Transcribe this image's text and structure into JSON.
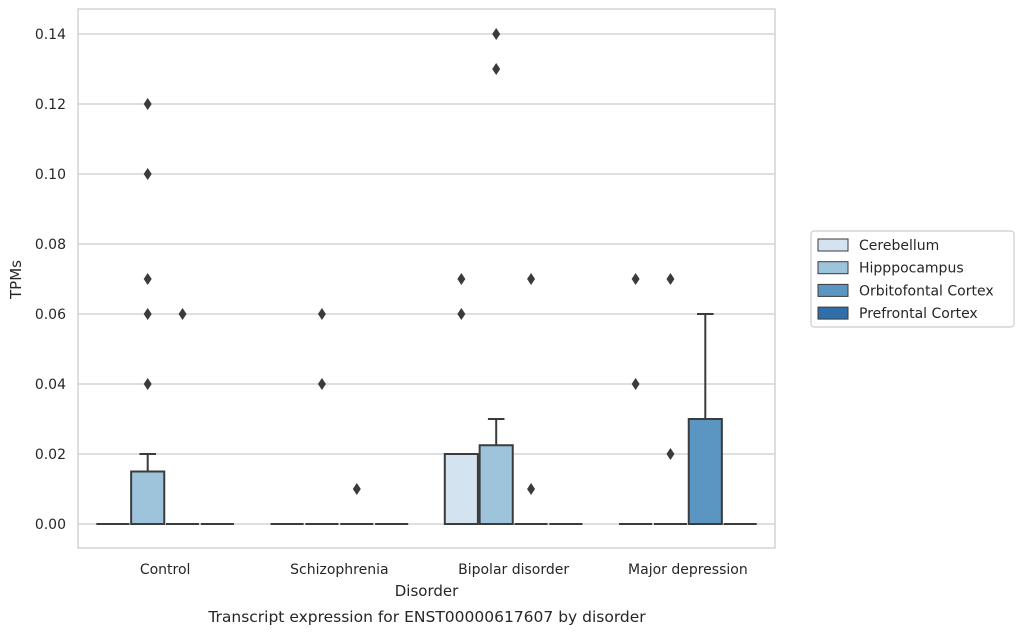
{
  "chart_data": {
    "type": "box",
    "title": "",
    "caption": "Transcript expression for ENST00000617607 by disorder",
    "xlabel": "Disorder",
    "ylabel": "TPMs",
    "ylim": [
      -0.007,
      0.147
    ],
    "yticks": [
      "0.00",
      "0.02",
      "0.04",
      "0.06",
      "0.08",
      "0.10",
      "0.12",
      "0.14"
    ],
    "categories": [
      "Control",
      "Schizophrenia",
      "Bipolar disorder",
      "Major depression"
    ],
    "grid": "horizontal",
    "legend_position": "right",
    "series": [
      {
        "name": "Cerebellum",
        "color": "#d4e3f0",
        "boxes": [
          {
            "q1": 0,
            "median": 0,
            "q3": 0,
            "whisker_low": 0,
            "whisker_high": 0,
            "outliers": []
          },
          {
            "q1": 0,
            "median": 0,
            "q3": 0,
            "whisker_low": 0,
            "whisker_high": 0,
            "outliers": []
          },
          {
            "q1": 0,
            "median": 0,
            "q3": 0.02,
            "whisker_low": 0,
            "whisker_high": 0.02,
            "outliers": [
              0.06,
              0.07
            ]
          },
          {
            "q1": 0,
            "median": 0,
            "q3": 0,
            "whisker_low": 0,
            "whisker_high": 0,
            "outliers": [
              0.04,
              0.07
            ]
          }
        ]
      },
      {
        "name": "Hipppocampus",
        "color": "#9ec4db",
        "boxes": [
          {
            "q1": 0,
            "median": 0,
            "q3": 0.015,
            "whisker_low": 0,
            "whisker_high": 0.02,
            "outliers": [
              0.04,
              0.06,
              0.07,
              0.1,
              0.12
            ]
          },
          {
            "q1": 0,
            "median": 0,
            "q3": 0,
            "whisker_low": 0,
            "whisker_high": 0,
            "outliers": [
              0.04,
              0.06
            ]
          },
          {
            "q1": 0,
            "median": 0,
            "q3": 0.0225,
            "whisker_low": 0,
            "whisker_high": 0.03,
            "outliers": [
              0.13,
              0.14
            ]
          },
          {
            "q1": 0,
            "median": 0,
            "q3": 0,
            "whisker_low": 0,
            "whisker_high": 0,
            "outliers": [
              0.02,
              0.07
            ]
          }
        ]
      },
      {
        "name": "Orbitofontal Cortex",
        "color": "#5b95c2",
        "boxes": [
          {
            "q1": 0,
            "median": 0,
            "q3": 0,
            "whisker_low": 0,
            "whisker_high": 0,
            "outliers": [
              0.06
            ]
          },
          {
            "q1": 0,
            "median": 0,
            "q3": 0,
            "whisker_low": 0,
            "whisker_high": 0,
            "outliers": [
              0.01
            ]
          },
          {
            "q1": 0,
            "median": 0,
            "q3": 0,
            "whisker_low": 0,
            "whisker_high": 0,
            "outliers": [
              0.01,
              0.07
            ]
          },
          {
            "q1": 0,
            "median": 0,
            "q3": 0.03,
            "whisker_low": 0,
            "whisker_high": 0.06,
            "outliers": []
          }
        ]
      },
      {
        "name": "Prefrontal Cortex",
        "color": "#2f6ea8",
        "boxes": [
          {
            "q1": 0,
            "median": 0,
            "q3": 0,
            "whisker_low": 0,
            "whisker_high": 0,
            "outliers": []
          },
          {
            "q1": 0,
            "median": 0,
            "q3": 0,
            "whisker_low": 0,
            "whisker_high": 0,
            "outliers": []
          },
          {
            "q1": 0,
            "median": 0,
            "q3": 0,
            "whisker_low": 0,
            "whisker_high": 0,
            "outliers": []
          },
          {
            "q1": 0,
            "median": 0,
            "q3": 0,
            "whisker_low": 0,
            "whisker_high": 0,
            "outliers": []
          }
        ]
      }
    ]
  }
}
